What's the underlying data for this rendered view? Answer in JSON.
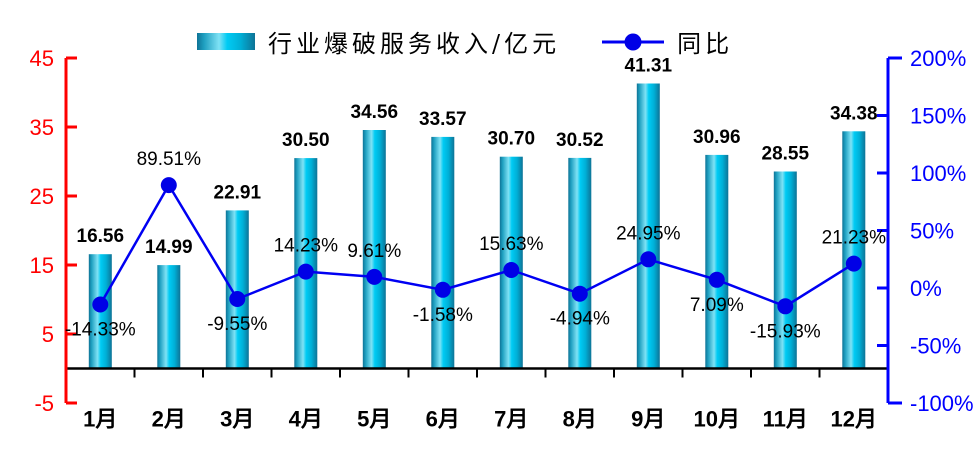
{
  "legend": {
    "bar_label": "行业爆破服务收入/亿元",
    "line_label": "同比"
  },
  "chart_data": {
    "type": "bar",
    "subtype": "bar-line-combo",
    "title": "",
    "categories": [
      "1月",
      "2月",
      "3月",
      "4月",
      "5月",
      "6月",
      "7月",
      "8月",
      "9月",
      "10月",
      "11月",
      "12月"
    ],
    "series": [
      {
        "name": "行业爆破服务收入/亿元",
        "type": "bar",
        "axis": "left",
        "values": [
          16.56,
          14.99,
          22.91,
          30.5,
          34.56,
          33.57,
          30.7,
          30.52,
          41.31,
          30.96,
          28.55,
          34.38
        ],
        "data_labels": [
          "16.56",
          "14.99",
          "22.91",
          "30.50",
          "34.56",
          "33.57",
          "30.70",
          "30.52",
          "41.31",
          "30.96",
          "28.55",
          "34.38"
        ]
      },
      {
        "name": "同比",
        "type": "line",
        "axis": "right",
        "values": [
          -14.33,
          89.51,
          -9.55,
          14.23,
          9.61,
          -1.58,
          15.63,
          -4.94,
          24.95,
          7.09,
          -15.93,
          21.23
        ],
        "data_labels": [
          "-14.33%",
          "89.51%",
          "-9.55%",
          "14.23%",
          "9.61%",
          "-1.58%",
          "15.63%",
          "-4.94%",
          "24.95%",
          "7.09%",
          "-15.93%",
          "21.23%"
        ],
        "label_side": [
          "below",
          "above",
          "below",
          "above",
          "above",
          "below",
          "above",
          "below",
          "above",
          "below",
          "below",
          "above"
        ]
      }
    ],
    "left_axis": {
      "min": -5,
      "max": 45,
      "color": "#FF0000",
      "ticks": [
        {
          "label": "45",
          "value": 45
        },
        {
          "label": "35",
          "value": 35
        },
        {
          "label": "25",
          "value": 25
        },
        {
          "label": "15",
          "value": 15
        },
        {
          "label": "5",
          "value": 5
        },
        {
          "label": "-5",
          "value": -5
        }
      ]
    },
    "right_axis": {
      "min": -100,
      "max": 200,
      "color": "#0000FF",
      "ticks": [
        {
          "label": "200%",
          "value": 200
        },
        {
          "label": "150%",
          "value": 150
        },
        {
          "label": "100%",
          "value": 100
        },
        {
          "label": "50%",
          "value": 50
        },
        {
          "label": "0%",
          "value": 0
        },
        {
          "label": "-50%",
          "value": -50
        },
        {
          "label": "-100%",
          "value": -100
        }
      ]
    },
    "legend_position": "top",
    "grid": false
  },
  "colors": {
    "background": "#FFFFFF",
    "bar_gradient": [
      [
        0,
        "#0E7396"
      ],
      [
        0.12,
        "#1E9FC0"
      ],
      [
        0.38,
        "#7FE2F5"
      ],
      [
        0.52,
        "#00CBF4"
      ],
      [
        0.75,
        "#00AFD6"
      ],
      [
        1,
        "#0E7396"
      ]
    ],
    "line": "#0000F2",
    "marker": "#0000E6",
    "category_axis": "#000000",
    "data_label": "#000000"
  }
}
